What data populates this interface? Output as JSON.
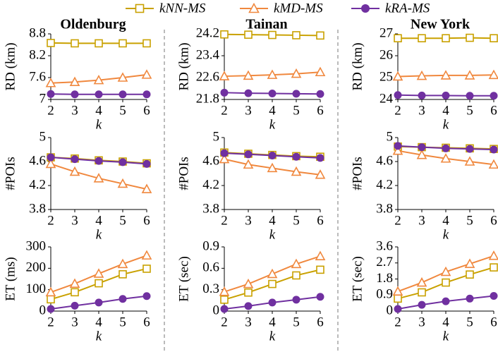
{
  "legend": {
    "series": [
      {
        "name": "kNN-MS",
        "color": "#c9a100",
        "marker": "square"
      },
      {
        "name": "kMD-MS",
        "color": "#f0883e",
        "marker": "triangle"
      },
      {
        "name": "kRA-MS",
        "color": "#7030a0",
        "marker": "circle"
      }
    ]
  },
  "chart_data": [
    {
      "type": "line",
      "title": "Oldenburg",
      "y_label": "RD (km)",
      "x_label": "k",
      "x": [
        2,
        3,
        4,
        5,
        6
      ],
      "xlim": [
        2,
        6
      ],
      "xticks": [
        2,
        3,
        4,
        5,
        6
      ],
      "ylim": [
        7,
        8.8
      ],
      "yticks": [
        7,
        7.6,
        8.2,
        8.8
      ],
      "series": [
        {
          "values": [
            8.55,
            8.54,
            8.54,
            8.54,
            8.54
          ]
        },
        {
          "values": [
            7.45,
            7.48,
            7.53,
            7.6,
            7.68
          ]
        },
        {
          "values": [
            7.15,
            7.14,
            7.14,
            7.14,
            7.14
          ]
        }
      ]
    },
    {
      "type": "line",
      "title": "Tainan",
      "y_label": "RD (km)",
      "x_label": "k",
      "x": [
        2,
        3,
        4,
        5,
        6
      ],
      "xlim": [
        2,
        6
      ],
      "xticks": [
        2,
        3,
        4,
        5,
        6
      ],
      "ylim": [
        21.8,
        24.2
      ],
      "yticks": [
        21.8,
        22.6,
        23.4,
        24.2
      ],
      "series": [
        {
          "values": [
            24.18,
            24.17,
            24.16,
            24.15,
            24.14
          ]
        },
        {
          "values": [
            22.65,
            22.67,
            22.7,
            22.74,
            22.8
          ]
        },
        {
          "values": [
            22.05,
            22.03,
            22.02,
            22.01,
            22.0
          ]
        }
      ]
    },
    {
      "type": "line",
      "title": "New York",
      "y_label": "RD (km)",
      "x_label": "k",
      "x": [
        2,
        3,
        4,
        5,
        6
      ],
      "xlim": [
        2,
        6
      ],
      "xticks": [
        2,
        3,
        4,
        5,
        6
      ],
      "ylim": [
        24,
        27
      ],
      "yticks": [
        24,
        25,
        26,
        27
      ],
      "series": [
        {
          "values": [
            26.8,
            26.8,
            26.8,
            26.82,
            26.8
          ]
        },
        {
          "values": [
            25.05,
            25.08,
            25.1,
            25.1,
            25.12
          ]
        },
        {
          "values": [
            24.2,
            24.18,
            24.18,
            24.17,
            24.17
          ]
        }
      ]
    },
    {
      "type": "line",
      "y_label": "#POIs",
      "x_label": "k",
      "x": [
        2,
        3,
        4,
        5,
        6
      ],
      "xlim": [
        2,
        6
      ],
      "xticks": [
        2,
        3,
        4,
        5,
        6
      ],
      "ylim": [
        3.8,
        5
      ],
      "yticks": [
        3.8,
        4.2,
        4.6,
        5
      ],
      "series": [
        {
          "values": [
            4.67,
            4.65,
            4.62,
            4.6,
            4.57
          ]
        },
        {
          "values": [
            4.56,
            4.43,
            4.32,
            4.23,
            4.14
          ]
        },
        {
          "values": [
            4.67,
            4.64,
            4.61,
            4.59,
            4.56
          ]
        }
      ]
    },
    {
      "type": "line",
      "y_label": "#POIs",
      "x_label": "k",
      "x": [
        2,
        3,
        4,
        5,
        6
      ],
      "xlim": [
        2,
        6
      ],
      "xticks": [
        2,
        3,
        4,
        5,
        6
      ],
      "ylim": [
        3.8,
        5
      ],
      "yticks": [
        3.8,
        4.2,
        4.6,
        5
      ],
      "series": [
        {
          "values": [
            4.75,
            4.73,
            4.71,
            4.69,
            4.68
          ]
        },
        {
          "values": [
            4.64,
            4.55,
            4.49,
            4.43,
            4.38
          ]
        },
        {
          "values": [
            4.74,
            4.72,
            4.7,
            4.68,
            4.66
          ]
        }
      ]
    },
    {
      "type": "line",
      "y_label": "#POIs",
      "x_label": "k",
      "x": [
        2,
        3,
        4,
        5,
        6
      ],
      "xlim": [
        2,
        6
      ],
      "xticks": [
        2,
        3,
        4,
        5,
        6
      ],
      "ylim": [
        3.8,
        5
      ],
      "yticks": [
        3.8,
        4.2,
        4.6,
        5
      ],
      "series": [
        {
          "values": [
            4.85,
            4.84,
            4.83,
            4.82,
            4.81
          ]
        },
        {
          "values": [
            4.78,
            4.71,
            4.65,
            4.6,
            4.55
          ]
        },
        {
          "values": [
            4.86,
            4.84,
            4.82,
            4.81,
            4.8
          ]
        }
      ]
    },
    {
      "type": "line",
      "y_label": "ET (ms)",
      "x_label": "k",
      "x": [
        2,
        3,
        4,
        5,
        6
      ],
      "xlim": [
        2,
        6
      ],
      "xticks": [
        2,
        3,
        4,
        5,
        6
      ],
      "ylim": [
        0,
        300
      ],
      "yticks": [
        0,
        100,
        200,
        300
      ],
      "series": [
        {
          "values": [
            55,
            88,
            130,
            172,
            198
          ]
        },
        {
          "values": [
            88,
            128,
            175,
            220,
            260
          ]
        },
        {
          "values": [
            10,
            25,
            40,
            57,
            70
          ]
        }
      ]
    },
    {
      "type": "line",
      "y_label": "ET (sec)",
      "x_label": "k",
      "x": [
        2,
        3,
        4,
        5,
        6
      ],
      "xlim": [
        2,
        6
      ],
      "xticks": [
        2,
        3,
        4,
        5,
        6
      ],
      "ylim": [
        0,
        0.9
      ],
      "yticks": [
        0,
        0.3,
        0.6,
        0.9
      ],
      "series": [
        {
          "values": [
            0.16,
            0.26,
            0.38,
            0.5,
            0.58
          ]
        },
        {
          "values": [
            0.27,
            0.38,
            0.52,
            0.66,
            0.77
          ]
        },
        {
          "values": [
            0.03,
            0.07,
            0.12,
            0.16,
            0.2
          ]
        }
      ]
    },
    {
      "type": "line",
      "y_label": "ET (sec)",
      "x_label": "k",
      "x": [
        2,
        3,
        4,
        5,
        6
      ],
      "xlim": [
        2,
        6
      ],
      "xticks": [
        2,
        3,
        4,
        5,
        6
      ],
      "ylim": [
        0,
        3.6
      ],
      "yticks": [
        0,
        0.9,
        1.8,
        2.7,
        3.6
      ],
      "series": [
        {
          "values": [
            0.7,
            1.05,
            1.6,
            2.05,
            2.45
          ]
        },
        {
          "values": [
            1.1,
            1.6,
            2.2,
            2.65,
            3.1
          ]
        },
        {
          "values": [
            0.12,
            0.35,
            0.55,
            0.7,
            0.85
          ]
        }
      ]
    }
  ]
}
